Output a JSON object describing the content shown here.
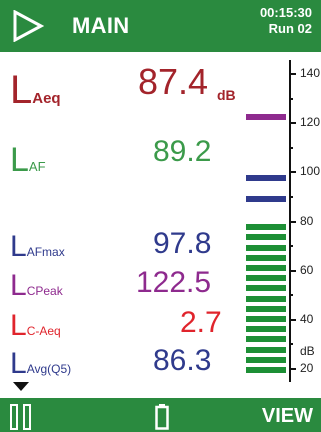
{
  "header": {
    "title": "MAIN",
    "time": "00:15:30",
    "run": "Run 02",
    "play_icon": "play-icon",
    "bg_color": "#2a8a3f"
  },
  "readings": {
    "laeq": {
      "letter": "L",
      "sub": "Aeq",
      "value": "87.4",
      "unit": "dB",
      "color": "#a3242b"
    },
    "laf": {
      "letter": "L",
      "sub": "AF",
      "value": "89.2",
      "color": "#3b9a4a"
    },
    "lafmax": {
      "letter": "L",
      "sub": "AFmax",
      "value": "97.8",
      "color": "#2f3a8c"
    },
    "lcpeak": {
      "letter": "L",
      "sub": "CPeak",
      "value": "122.5",
      "color": "#8e2a8e"
    },
    "lcaeq": {
      "letter": "L",
      "sub": "C-Aeq",
      "value": "2.7",
      "color": "#e0242c"
    },
    "lavg": {
      "letter": "L",
      "sub": "Avg(Q5)",
      "value": "86.3",
      "color": "#2f3a8c"
    }
  },
  "bargraph": {
    "scale_labels": [
      "140",
      "120",
      "100",
      "80",
      "60",
      "40",
      "20"
    ],
    "unit_label": "dB",
    "level": 87.4,
    "green_bar_count": 15,
    "markers": [
      {
        "label": "peak",
        "value": 122.5,
        "color": "#8e2a8e"
      },
      {
        "label": "max",
        "value": 97.8,
        "color": "#2f3a8c"
      },
      {
        "label": "fast",
        "value": 89.2,
        "color": "#2f3a8c"
      }
    ],
    "bar_color": "#1d8f35"
  },
  "footer": {
    "view_label": "VIEW",
    "pause_icon": "pause-icon",
    "battery_icon": "battery-icon"
  }
}
